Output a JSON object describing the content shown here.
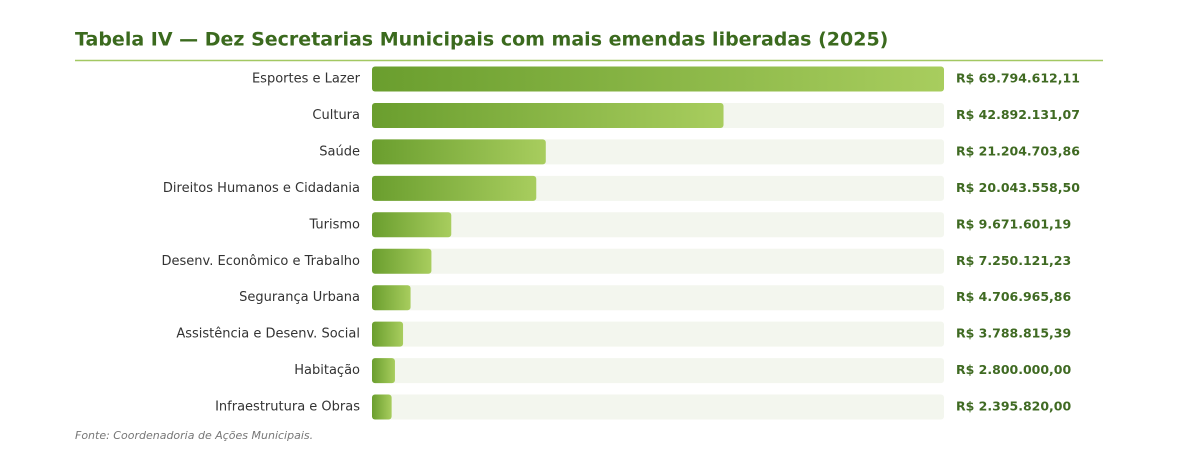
{
  "chart_data": {
    "type": "bar",
    "orientation": "horizontal",
    "title": "Tabela IV — Dez Secretarias Municipais com mais emendas liberadas (2025)",
    "categories": [
      "Esportes e Lazer",
      "Cultura",
      "Saúde",
      "Direitos Humanos e Cidadania",
      "Turismo",
      "Desenv. Econômico e Trabalho",
      "Segurança Urbana",
      "Assistência e Desenv. Social",
      "Habitação",
      "Infraestrutura e Obras"
    ],
    "values": [
      69794612.11,
      42892131.07,
      21204703.86,
      20043558.5,
      9671601.19,
      7250121.23,
      4706965.86,
      3788815.39,
      2800000.0,
      2395820.0
    ],
    "value_labels": [
      "R$ 69.794.612,11",
      "R$ 42.892.131,07",
      "R$ 21.204.703,86",
      "R$ 20.043.558,50",
      "R$ 9.671.601,19",
      "R$ 7.250.121,23",
      "R$ 4.706.965,86",
      "R$ 3.788.815,39",
      "R$ 2.800.000,00",
      "R$ 2.395.820,00"
    ],
    "color": "#6a9e2e",
    "source": "Fonte: Coordenadoria de Ações Municipais."
  }
}
